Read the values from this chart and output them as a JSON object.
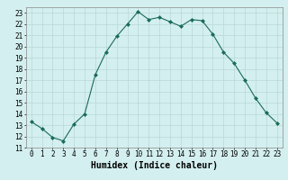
{
  "x": [
    0,
    1,
    2,
    3,
    4,
    5,
    6,
    7,
    8,
    9,
    10,
    11,
    12,
    13,
    14,
    15,
    16,
    17,
    18,
    19,
    20,
    21,
    22,
    23
  ],
  "y": [
    13.3,
    12.7,
    11.9,
    11.6,
    13.1,
    14.0,
    17.5,
    19.5,
    20.9,
    22.0,
    23.1,
    22.4,
    22.6,
    22.2,
    21.8,
    22.4,
    22.3,
    21.1,
    19.5,
    18.5,
    17.0,
    15.4,
    14.1,
    13.2
  ],
  "line_color": "#1a6b5a",
  "marker": "D",
  "marker_size": 2.0,
  "bg_color": "#d4efef",
  "grid_color": "#b8d8d8",
  "xlabel": "Humidex (Indice chaleur)",
  "ylim": [
    11,
    23.5
  ],
  "xlim": [
    -0.5,
    23.5
  ],
  "yticks": [
    11,
    12,
    13,
    14,
    15,
    16,
    17,
    18,
    19,
    20,
    21,
    22,
    23
  ],
  "xticks": [
    0,
    1,
    2,
    3,
    4,
    5,
    6,
    7,
    8,
    9,
    10,
    11,
    12,
    13,
    14,
    15,
    16,
    17,
    18,
    19,
    20,
    21,
    22,
    23
  ],
  "tick_fontsize": 5.5,
  "label_fontsize": 7.0
}
